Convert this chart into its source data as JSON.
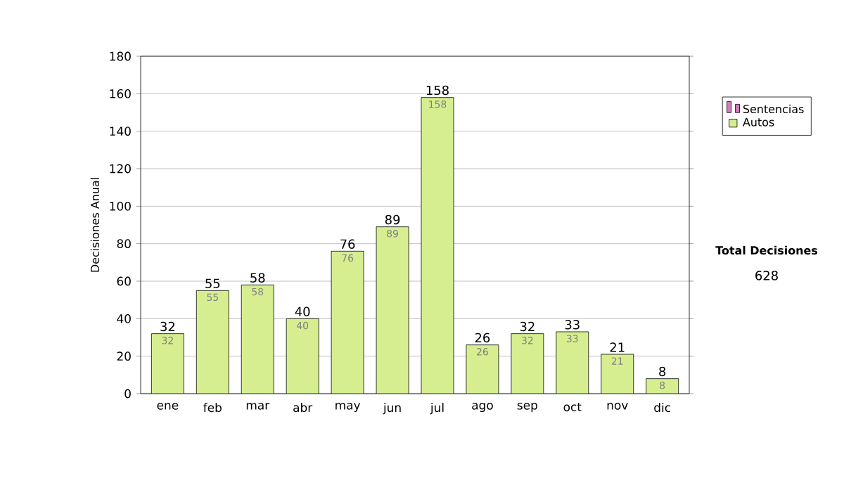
{
  "chart_data": {
    "type": "bar",
    "ylabel": "Decisiones Anual",
    "categories": [
      "ene",
      "feb",
      "mar",
      "abr",
      "may",
      "jun",
      "jul",
      "ago",
      "sep",
      "oct",
      "nov",
      "dic"
    ],
    "series": [
      {
        "name": "Sentencias",
        "color": "#d879c0",
        "values": [
          null,
          null,
          null,
          null,
          null,
          null,
          null,
          null,
          null,
          null,
          null,
          null
        ]
      },
      {
        "name": "Autos",
        "color": "#d6ee90",
        "values": [
          32,
          55,
          58,
          40,
          76,
          89,
          158,
          26,
          32,
          33,
          21,
          8
        ]
      }
    ],
    "data_labels": true,
    "totals": [
      "32",
      "55",
      "58",
      "40",
      "76",
      "89",
      "158",
      "26",
      "32",
      "33",
      "21",
      "8"
    ],
    "ylim": [
      0,
      180
    ],
    "yticks": [
      0,
      20,
      40,
      60,
      80,
      100,
      120,
      140,
      160,
      180
    ],
    "grid": "y",
    "legend": "right",
    "annotations": [
      "Total Decisiones",
      "628"
    ]
  }
}
